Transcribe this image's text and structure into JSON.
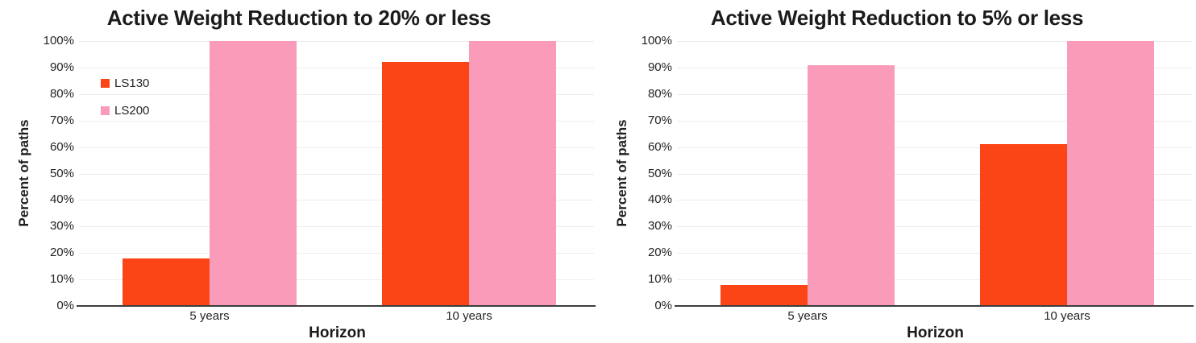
{
  "colors": {
    "ls130": "#fb4516",
    "ls200": "#fa9cb9",
    "grid": "#ececec",
    "axis": "#3d3d3d",
    "text": "#242424"
  },
  "legend": {
    "items": [
      {
        "label": "LS130",
        "color": "#fb4516"
      },
      {
        "label": "LS200",
        "color": "#fa9cb9"
      }
    ]
  },
  "chart_data": [
    {
      "type": "bar",
      "title": "Active Weight Reduction to 20% or less",
      "categories": [
        "5 years",
        "10 years"
      ],
      "series": [
        {
          "name": "LS130",
          "color": "#fb4516",
          "values": [
            18,
            92
          ]
        },
        {
          "name": "LS200",
          "color": "#fa9cb9",
          "values": [
            100,
            100
          ]
        }
      ],
      "xlabel": "Horizon",
      "ylabel": "Percent of paths",
      "ylim": [
        0,
        100
      ],
      "ytick_step": 10,
      "ytick_suffix": "%",
      "grid": true,
      "legend_position": "upper-left-inside",
      "legend_visible": true
    },
    {
      "type": "bar",
      "title": "Active Weight Reduction to 5% or less",
      "categories": [
        "5 years",
        "10 years"
      ],
      "series": [
        {
          "name": "LS130",
          "color": "#fb4516",
          "values": [
            8,
            61
          ]
        },
        {
          "name": "LS200",
          "color": "#fa9cb9",
          "values": [
            91,
            100
          ]
        }
      ],
      "xlabel": "Horizon",
      "ylabel": "Percent of paths",
      "ylim": [
        0,
        100
      ],
      "ytick_step": 10,
      "ytick_suffix": "%",
      "grid": true,
      "legend_position": "none",
      "legend_visible": false
    }
  ]
}
